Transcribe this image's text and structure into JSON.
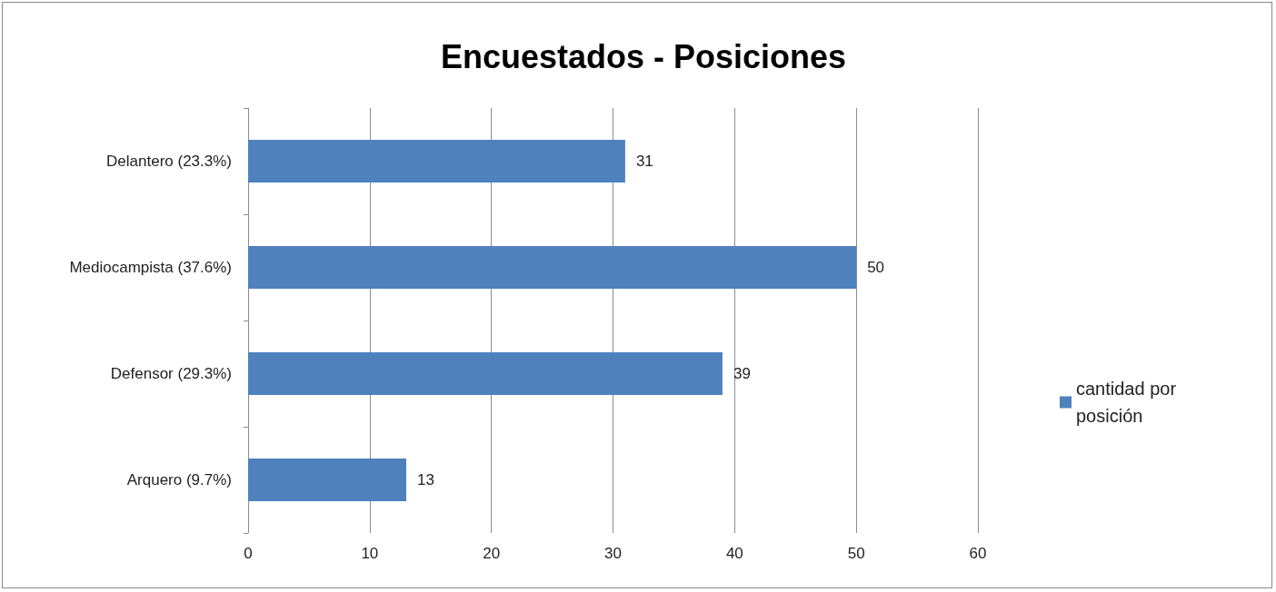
{
  "chart_data": {
    "type": "bar",
    "title": "Encuestados - Posiciones",
    "orientation": "horizontal",
    "categories": [
      "Delantero (23.3%)",
      "Mediocampista (37.6%)",
      "Defensor (29.3%)",
      "Arquero (9.7%)"
    ],
    "series": [
      {
        "name": "cantidad por posición",
        "color": "#4f81bd",
        "values": [
          31,
          50,
          39,
          13
        ]
      }
    ],
    "xlim": [
      0,
      60
    ],
    "xticks": [
      0,
      10,
      20,
      30,
      40,
      50,
      60
    ],
    "grid": "x",
    "legend": "right",
    "data_labels": true
  }
}
